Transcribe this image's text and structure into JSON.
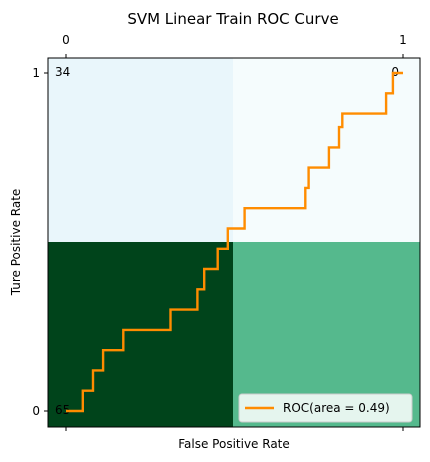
{
  "chart_data": {
    "type": "line",
    "title": "SVM Linear Train ROC Curve",
    "xlabel": "False Positive Rate",
    "ylabel": "Ture Positive Rate",
    "xlim": [
      0,
      1
    ],
    "ylim": [
      0,
      1
    ],
    "top_ticks": [
      "0",
      "1"
    ],
    "left_ticks": [
      "0",
      "1"
    ],
    "background_matrix": {
      "cells": [
        {
          "row": "top",
          "col": "left",
          "value": "34",
          "color": "#e9f6fb"
        },
        {
          "row": "top",
          "col": "right",
          "value": "0",
          "color": "#f5fcfd"
        },
        {
          "row": "bottom",
          "col": "left",
          "value": "65",
          "color": "#00441b"
        },
        {
          "row": "bottom",
          "col": "right",
          "value": "",
          "color": "#55b98d"
        }
      ]
    },
    "series": [
      {
        "name": "ROC(area = 0.49)",
        "color": "#ff8c00",
        "x": [
          0.0,
          0.05,
          0.05,
          0.08,
          0.08,
          0.11,
          0.11,
          0.17,
          0.17,
          0.31,
          0.31,
          0.39,
          0.39,
          0.41,
          0.41,
          0.45,
          0.45,
          0.48,
          0.48,
          0.53,
          0.53,
          0.71,
          0.71,
          0.72,
          0.72,
          0.78,
          0.78,
          0.81,
          0.81,
          0.82,
          0.82,
          0.95,
          0.95,
          0.97,
          0.97,
          1.0
        ],
        "y": [
          0.0,
          0.0,
          0.06,
          0.06,
          0.12,
          0.12,
          0.18,
          0.18,
          0.24,
          0.24,
          0.3,
          0.3,
          0.36,
          0.36,
          0.42,
          0.42,
          0.48,
          0.48,
          0.54,
          0.54,
          0.6,
          0.6,
          0.66,
          0.66,
          0.72,
          0.72,
          0.78,
          0.78,
          0.84,
          0.84,
          0.88,
          0.88,
          0.94,
          0.94,
          1.0,
          1.0
        ]
      }
    ],
    "legend": {
      "position": "bottom-right",
      "label": "ROC(area = 0.49)"
    }
  }
}
